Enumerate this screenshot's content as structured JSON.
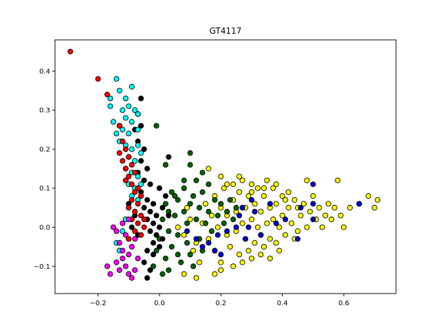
{
  "chart_data": {
    "type": "scatter",
    "title": "GT4117",
    "xlabel": "",
    "ylabel": "",
    "xlim": [
      -0.34,
      0.77
    ],
    "ylim": [
      -0.17,
      0.48
    ],
    "xticks": [
      -0.2,
      0.0,
      0.2,
      0.4,
      0.6
    ],
    "xtick_labels": [
      "−0.2",
      "0.0",
      "0.2",
      "0.4",
      "0.6"
    ],
    "yticks": [
      -0.1,
      0.0,
      0.1,
      0.2,
      0.3,
      0.4
    ],
    "ytick_labels": [
      "−0.1",
      "0.0",
      "0.1",
      "0.2",
      "0.3",
      "0.4"
    ],
    "grid": false,
    "legend": "none",
    "series": [
      {
        "color": "#ffff00",
        "points": [
          [
            0.06,
            0.0
          ],
          [
            0.08,
            -0.02
          ],
          [
            0.1,
            0.02
          ],
          [
            0.12,
            -0.04
          ],
          [
            0.14,
            0.01
          ],
          [
            0.15,
            0.06
          ],
          [
            0.16,
            -0.03
          ],
          [
            0.17,
            0.03
          ],
          [
            0.18,
            -0.06
          ],
          [
            0.18,
            0.08
          ],
          [
            0.19,
            0.0
          ],
          [
            0.2,
            0.05
          ],
          [
            0.2,
            -0.09
          ],
          [
            0.21,
            0.1
          ],
          [
            0.22,
            -0.02
          ],
          [
            0.22,
            0.03
          ],
          [
            0.23,
            -0.05
          ],
          [
            0.24,
            0.07
          ],
          [
            0.24,
            0.11
          ],
          [
            0.25,
            -0.01
          ],
          [
            0.25,
            0.04
          ],
          [
            0.26,
            -0.07
          ],
          [
            0.26,
            0.09
          ],
          [
            0.27,
            0.01
          ],
          [
            0.27,
            0.12
          ],
          [
            0.28,
            -0.03
          ],
          [
            0.28,
            0.05
          ],
          [
            0.29,
            -0.06
          ],
          [
            0.29,
            0.08
          ],
          [
            0.3,
            0.02
          ],
          [
            0.3,
            0.11
          ],
          [
            0.31,
            -0.04
          ],
          [
            0.31,
            0.06
          ],
          [
            0.32,
            0.0
          ],
          [
            0.32,
            0.1
          ],
          [
            0.33,
            -0.02
          ],
          [
            0.33,
            0.04
          ],
          [
            0.34,
            -0.05
          ],
          [
            0.34,
            0.08
          ],
          [
            0.35,
            0.01
          ],
          [
            0.35,
            0.12
          ],
          [
            0.36,
            -0.03
          ],
          [
            0.36,
            0.05
          ],
          [
            0.37,
            0.02
          ],
          [
            0.37,
            0.1
          ],
          [
            0.38,
            -0.04
          ],
          [
            0.38,
            0.06
          ],
          [
            0.39,
            0.0
          ],
          [
            0.4,
            0.03
          ],
          [
            0.4,
            0.08
          ],
          [
            0.41,
            -0.02
          ],
          [
            0.42,
            0.05
          ],
          [
            0.43,
            0.01
          ],
          [
            0.44,
            0.07
          ],
          [
            0.45,
            -0.01
          ],
          [
            0.46,
            0.03
          ],
          [
            0.47,
            0.06
          ],
          [
            0.48,
            0.0
          ],
          [
            0.49,
            0.04
          ],
          [
            0.5,
            0.08
          ],
          [
            0.51,
            0.02
          ],
          [
            0.52,
            0.05
          ],
          [
            0.53,
            0.0
          ],
          [
            0.54,
            0.03
          ],
          [
            0.55,
            0.06
          ],
          [
            0.56,
            0.02
          ],
          [
            0.57,
            0.05
          ],
          [
            0.58,
            0.12
          ],
          [
            0.59,
            0.03
          ],
          [
            0.6,
            0.0
          ],
          [
            0.62,
            0.05
          ],
          [
            0.65,
            0.06
          ],
          [
            0.68,
            0.08
          ],
          [
            0.7,
            0.05
          ],
          [
            0.71,
            0.07
          ],
          [
            0.48,
            0.12
          ],
          [
            0.44,
            -0.03
          ],
          [
            0.42,
            0.09
          ],
          [
            0.39,
            -0.06
          ],
          [
            0.36,
            -0.08
          ],
          [
            0.33,
            -0.07
          ],
          [
            0.3,
            -0.08
          ],
          [
            0.27,
            -0.09
          ],
          [
            0.24,
            -0.1
          ],
          [
            0.2,
            -0.11
          ],
          [
            0.18,
            -0.12
          ],
          [
            0.12,
            -0.13
          ],
          [
            0.08,
            -0.12
          ],
          [
            0.16,
            0.15
          ],
          [
            0.2,
            0.13
          ],
          [
            0.22,
            0.11
          ],
          [
            0.26,
            0.13
          ],
          [
            0.3,
            0.09
          ],
          [
            0.34,
            0.1
          ],
          [
            0.38,
            0.11
          ],
          [
            0.41,
            0.07
          ],
          [
            0.45,
            0.05
          ],
          [
            0.13,
            -0.09
          ],
          [
            0.11,
            -0.06
          ],
          [
            0.09,
            0.05
          ]
        ]
      },
      {
        "color": "#006400",
        "points": [
          [
            -0.02,
            -0.1
          ],
          [
            -0.01,
            -0.06
          ],
          [
            0.0,
            -0.03
          ],
          [
            0.01,
            0.02
          ],
          [
            0.02,
            -0.08
          ],
          [
            0.02,
            0.06
          ],
          [
            0.03,
            -0.01
          ],
          [
            0.04,
            0.09
          ],
          [
            0.04,
            -0.05
          ],
          [
            0.05,
            0.03
          ],
          [
            0.06,
            -0.02
          ],
          [
            0.06,
            0.07
          ],
          [
            0.07,
            -0.09
          ],
          [
            0.08,
            0.04
          ],
          [
            0.08,
            0.1
          ],
          [
            0.09,
            -0.04
          ],
          [
            0.09,
            0.01
          ],
          [
            0.1,
            0.06
          ],
          [
            0.1,
            -0.07
          ],
          [
            0.11,
            0.08
          ],
          [
            0.12,
            0.02
          ],
          [
            0.12,
            0.12
          ],
          [
            0.13,
            -0.03
          ],
          [
            0.13,
            0.05
          ],
          [
            0.14,
            0.09
          ],
          [
            0.14,
            -0.06
          ],
          [
            0.15,
            0.01
          ],
          [
            0.16,
            0.04
          ],
          [
            0.16,
            0.11
          ],
          [
            0.17,
            -0.01
          ],
          [
            0.18,
            0.07
          ],
          [
            0.19,
            0.03
          ],
          [
            0.2,
            0.06
          ],
          [
            0.21,
            0.01
          ],
          [
            0.22,
            0.04
          ],
          [
            0.23,
            0.07
          ],
          [
            0.24,
            0.02
          ],
          [
            0.25,
            0.05
          ],
          [
            0.01,
            -0.12
          ],
          [
            0.03,
            -0.11
          ],
          [
            -0.01,
            0.26
          ],
          [
            0.02,
            0.16
          ],
          [
            0.1,
            0.19
          ],
          [
            0.1,
            0.16
          ],
          [
            0.14,
            0.14
          ],
          [
            0.08,
            0.12
          ],
          [
            0.05,
            0.08
          ],
          [
            0.11,
            -0.1
          ],
          [
            0.06,
            -0.07
          ],
          [
            0.03,
            0.04
          ]
        ]
      },
      {
        "color": "#000000",
        "points": [
          [
            -0.06,
            0.33
          ],
          [
            -0.07,
            0.29
          ],
          [
            -0.06,
            0.26
          ],
          [
            -0.08,
            0.25
          ],
          [
            -0.07,
            0.22
          ],
          [
            -0.05,
            0.2
          ],
          [
            -0.06,
            0.17
          ],
          [
            -0.04,
            0.15
          ],
          [
            -0.07,
            0.14
          ],
          [
            -0.05,
            0.12
          ],
          [
            -0.03,
            0.11
          ],
          [
            -0.06,
            0.09
          ],
          [
            -0.04,
            0.07
          ],
          [
            -0.02,
            0.06
          ],
          [
            -0.05,
            0.05
          ],
          [
            -0.03,
            0.04
          ],
          [
            -0.01,
            0.03
          ],
          [
            -0.04,
            0.02
          ],
          [
            -0.02,
            0.01
          ],
          [
            0.0,
            0.0
          ],
          [
            -0.03,
            -0.01
          ],
          [
            -0.01,
            -0.02
          ],
          [
            0.01,
            -0.03
          ],
          [
            -0.02,
            -0.04
          ],
          [
            0.0,
            -0.05
          ],
          [
            -0.04,
            -0.06
          ],
          [
            -0.02,
            -0.07
          ],
          [
            -0.05,
            -0.09
          ],
          [
            -0.03,
            -0.11
          ],
          [
            -0.04,
            -0.13
          ],
          [
            0.03,
            0.18
          ],
          [
            0.0,
            0.1
          ],
          [
            0.02,
            0.08
          ],
          [
            0.01,
            0.05
          ],
          [
            0.03,
            0.03
          ],
          [
            -0.08,
            0.03
          ],
          [
            -0.09,
            0.0
          ],
          [
            -0.07,
            -0.02
          ],
          [
            -0.1,
            0.06
          ],
          [
            -0.06,
            0.08
          ]
        ]
      },
      {
        "color": "#00ffff",
        "points": [
          [
            -0.14,
            0.38
          ],
          [
            -0.13,
            0.35
          ],
          [
            -0.09,
            0.36
          ],
          [
            -0.11,
            0.33
          ],
          [
            -0.1,
            0.31
          ],
          [
            -0.16,
            0.33
          ],
          [
            -0.16,
            0.31
          ],
          [
            -0.12,
            0.3
          ],
          [
            -0.08,
            0.3
          ],
          [
            -0.07,
            0.29
          ],
          [
            -0.11,
            0.28
          ],
          [
            -0.15,
            0.27
          ],
          [
            -0.13,
            0.26
          ],
          [
            -0.09,
            0.27
          ],
          [
            -0.14,
            0.24
          ],
          [
            -0.12,
            0.25
          ],
          [
            -0.1,
            0.24
          ],
          [
            -0.07,
            0.25
          ],
          [
            -0.13,
            0.22
          ],
          [
            -0.11,
            0.21
          ],
          [
            -0.09,
            0.2
          ],
          [
            -0.07,
            0.21
          ],
          [
            -0.06,
            0.19
          ],
          [
            -0.1,
            0.18
          ],
          [
            -0.08,
            0.17
          ],
          [
            -0.11,
            0.15
          ],
          [
            -0.09,
            0.14
          ],
          [
            -0.07,
            0.13
          ],
          [
            -0.1,
            0.11
          ],
          [
            -0.08,
            0.1
          ],
          [
            -0.06,
            0.11
          ],
          [
            -0.09,
            0.08
          ],
          [
            -0.07,
            0.07
          ],
          [
            -0.1,
            0.05
          ],
          [
            -0.08,
            0.04
          ],
          [
            -0.11,
            0.02
          ],
          [
            -0.12,
            -0.01
          ],
          [
            -0.14,
            -0.04
          ],
          [
            -0.13,
            -0.06
          ],
          [
            -0.1,
            -0.03
          ]
        ]
      },
      {
        "color": "#ff0000",
        "points": [
          [
            -0.29,
            0.45
          ],
          [
            -0.2,
            0.38
          ],
          [
            -0.17,
            0.34
          ],
          [
            -0.13,
            0.26
          ],
          [
            -0.12,
            0.22
          ],
          [
            -0.11,
            0.2
          ],
          [
            -0.13,
            0.19
          ],
          [
            -0.1,
            0.18
          ],
          [
            -0.12,
            0.17
          ],
          [
            -0.09,
            0.16
          ],
          [
            -0.11,
            0.15
          ],
          [
            -0.08,
            0.14
          ],
          [
            -0.1,
            0.13
          ],
          [
            -0.11,
            0.12
          ],
          [
            -0.09,
            0.11
          ],
          [
            -0.07,
            0.1
          ],
          [
            -0.08,
            0.09
          ],
          [
            -0.06,
            0.08
          ],
          [
            -0.09,
            0.07
          ],
          [
            -0.07,
            0.06
          ],
          [
            -0.1,
            0.05
          ],
          [
            -0.08,
            0.04
          ],
          [
            -0.06,
            0.03
          ],
          [
            -0.09,
            0.02
          ],
          [
            -0.07,
            0.01
          ],
          [
            -0.05,
            0.0
          ],
          [
            -0.08,
            -0.01
          ],
          [
            -0.06,
            -0.02
          ],
          [
            -0.1,
            -0.03
          ],
          [
            -0.05,
            0.02
          ]
        ]
      },
      {
        "color": "#ff00ff",
        "points": [
          [
            -0.17,
            -0.1
          ],
          [
            -0.16,
            -0.12
          ],
          [
            -0.14,
            -0.09
          ],
          [
            -0.13,
            -0.11
          ],
          [
            -0.12,
            -0.08
          ],
          [
            -0.11,
            -0.1
          ],
          [
            -0.1,
            -0.12
          ],
          [
            -0.09,
            -0.13
          ],
          [
            -0.08,
            -0.11
          ],
          [
            -0.12,
            -0.06
          ],
          [
            -0.1,
            -0.07
          ],
          [
            -0.09,
            -0.05
          ],
          [
            -0.13,
            -0.04
          ],
          [
            -0.11,
            -0.02
          ],
          [
            -0.08,
            -0.03
          ],
          [
            -0.14,
            -0.01
          ],
          [
            -0.12,
            0.01
          ],
          [
            -0.1,
            0.02
          ],
          [
            -0.15,
            0.0
          ],
          [
            -0.07,
            -0.08
          ]
        ]
      },
      {
        "color": "#0000cd",
        "points": [
          [
            0.5,
            0.11
          ],
          [
            0.65,
            0.06
          ],
          [
            0.5,
            0.06
          ],
          [
            0.46,
            0.05
          ],
          [
            0.36,
            0.06
          ],
          [
            0.3,
            0.07
          ],
          [
            0.31,
            0.04
          ],
          [
            0.27,
            0.05
          ],
          [
            0.25,
            0.0
          ],
          [
            0.29,
            0.0
          ],
          [
            0.33,
            -0.02
          ],
          [
            0.38,
            0.01
          ],
          [
            0.41,
            0.02
          ],
          [
            0.45,
            -0.03
          ],
          [
            0.5,
            0.02
          ],
          [
            0.28,
            -0.03
          ],
          [
            0.22,
            -0.01
          ],
          [
            0.19,
            -0.02
          ],
          [
            0.16,
            -0.04
          ],
          [
            0.14,
            -0.05
          ],
          [
            0.18,
            -0.06
          ],
          [
            0.12,
            -0.03
          ],
          [
            0.26,
            0.03
          ],
          [
            0.2,
            -0.07
          ],
          [
            0.09,
            -0.01
          ]
        ]
      }
    ]
  }
}
